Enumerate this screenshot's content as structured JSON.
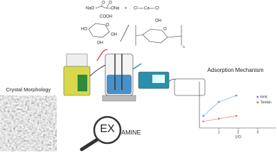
{
  "chemistry": {
    "oxalate": [
      "NaO",
      "O",
      "O",
      "ONa"
    ],
    "plus": "+",
    "calcium_chloride": [
      "Cl",
      "Ca",
      "Cl"
    ],
    "glucuronate": [
      "COOH",
      "O",
      "OH",
      "HO",
      "OH"
    ],
    "cellulose": [
      "OH",
      "O",
      "n"
    ]
  },
  "labels": {
    "crystal_morphology": "Crystal Morphology",
    "examine_prefix": "EX",
    "examine_suffix": "AMINE"
  },
  "chart_data": {
    "type": "scatter",
    "title": "Adsorption Mechanism",
    "x_label": "1/Ci",
    "xlim": [
      0,
      4
    ],
    "xticks": [
      1,
      2,
      3
    ],
    "ylim": [
      0,
      5
    ],
    "legend": "upper right",
    "series": [
      {
        "name": "Ionic",
        "color": "#5b8fd6",
        "x": [
          0.2,
          1,
          1.9
        ],
        "values": [
          1.3,
          2.8,
          3.5
        ]
      },
      {
        "name": "Temkin",
        "color": "#e06a6a",
        "x": [
          0.2,
          1,
          1.9
        ],
        "values": [
          0.7,
          1.0,
          1.3
        ]
      }
    ]
  }
}
